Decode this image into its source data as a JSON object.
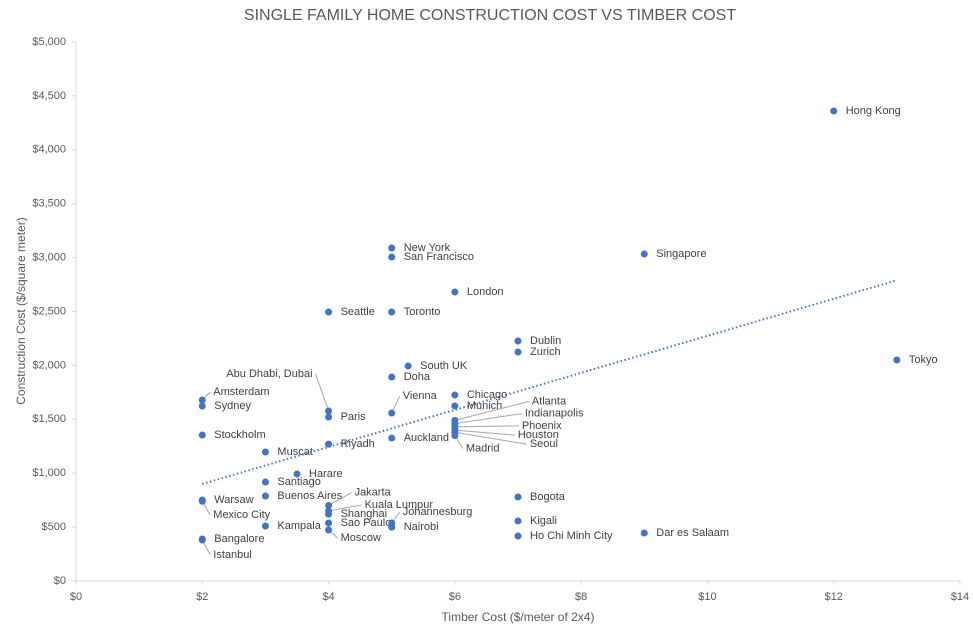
{
  "chart_data": {
    "type": "scatter",
    "title": "SINGLE FAMILY HOME CONSTRUCTION COST VS TIMBER COST",
    "x_label": "Timber Cost ($/meter of 2x4)",
    "y_label": "Construction Cost ($/square meter)",
    "color": "#4472c4",
    "labels": [
      "Hong Kong",
      "Singapore",
      "Tokyo",
      "New York",
      "San Francisco",
      "London",
      "Seattle",
      "Toronto",
      "Dublin",
      "Zurich",
      "South UK",
      "Doha",
      "Abu Dhabi, Dubai",
      "Paris",
      "Vienna",
      "Amsterdam",
      "Sydney",
      "Chicago",
      "Munich",
      "Atlanta",
      "Indianapolis",
      "Phoenix",
      "Houston",
      "Seoul",
      "Madrid",
      "Stockholm",
      "Auckland",
      "Riyadh",
      "Muscat",
      "Harare",
      "Santiago",
      "Buenos Aires",
      "Bogota",
      "Warsaw",
      "Mexico City",
      "Jakarta",
      "Kuala Lumpur",
      "Shanghai",
      "Sao Paulo",
      "Moscow",
      "Johannesburg",
      "Nairobi",
      "Kigali",
      "Kampala",
      "Dar es Salaam",
      "Ho Chi Minh City",
      "Bangalore",
      "Istanbul"
    ],
    "x": [
      12,
      9,
      13,
      5,
      5,
      6,
      4,
      5,
      7,
      7,
      5.26,
      5,
      4,
      4,
      5,
      2,
      2,
      6,
      6,
      6,
      6,
      6,
      6,
      6,
      6,
      2,
      5,
      4,
      3,
      3.5,
      3,
      3,
      7,
      2,
      2,
      4,
      4,
      4,
      4,
      4,
      5,
      5,
      7,
      3,
      9,
      7,
      2,
      2
    ],
    "values": [
      4360,
      3033,
      2050,
      3089,
      3005,
      2681,
      2495,
      2495,
      2226,
      2124,
      1994,
      1892,
      1577,
      1521,
      1558,
      1679,
      1623,
      1725,
      1623,
      1490,
      1460,
      1430,
      1400,
      1380,
      1350,
      1354,
      1326,
      1270,
      1197,
      993,
      918,
      788,
      779,
      751,
      740,
      700,
      650,
      620,
      538,
      473,
      538,
      500,
      557,
      510,
      445,
      417,
      390,
      380
    ],
    "trendline": {
      "x": [
        2,
        13
      ],
      "values": [
        900,
        2790
      ]
    },
    "xlim": [
      0,
      14
    ],
    "xticks": [
      {
        "value": 0,
        "label": "$0"
      },
      {
        "value": 2,
        "label": "$2"
      },
      {
        "value": 4,
        "label": "$4"
      },
      {
        "value": 6,
        "label": "$6"
      },
      {
        "value": 8,
        "label": "$8"
      },
      {
        "value": 10,
        "label": "$10"
      },
      {
        "value": 12,
        "label": "$12"
      },
      {
        "value": 14,
        "label": "$14"
      }
    ],
    "ylim": [
      0,
      5000
    ],
    "yticks": [
      {
        "value": 0,
        "label": "$0"
      },
      {
        "value": 500,
        "label": "$500"
      },
      {
        "value": 1000,
        "label": "$1,000"
      },
      {
        "value": 1500,
        "label": "$1,500"
      },
      {
        "value": 2000,
        "label": "$2,000"
      },
      {
        "value": 2500,
        "label": "$2,500"
      },
      {
        "value": 3000,
        "label": "$3,000"
      },
      {
        "value": 3500,
        "label": "$3,500"
      },
      {
        "value": 4000,
        "label": "$4,000"
      },
      {
        "value": 4500,
        "label": "$4,500"
      },
      {
        "value": 5000,
        "label": "$5,000"
      }
    ]
  }
}
